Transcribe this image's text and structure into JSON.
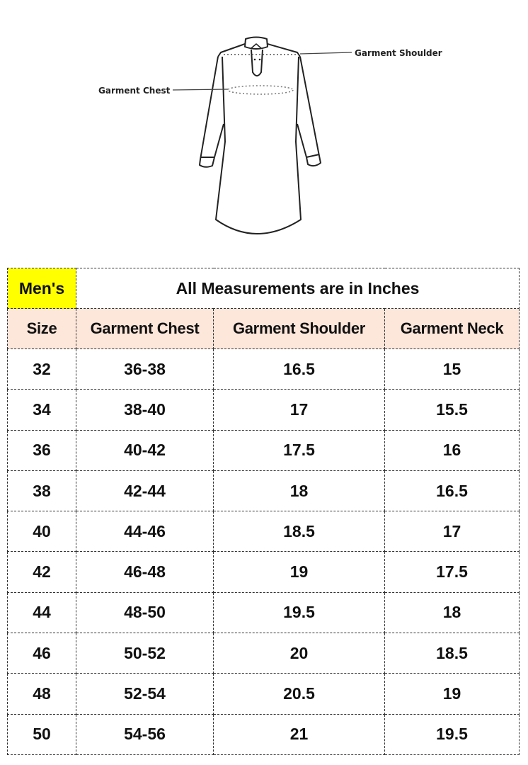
{
  "illustration": {
    "icon": "kurta-outline",
    "labels": {
      "chest": "Garment Chest",
      "shoulder": "Garment Shoulder"
    }
  },
  "table": {
    "badge": "Men's",
    "badge_color": "#ffff00",
    "header_color": "#fde6da",
    "title": "All Measurements are in Inches",
    "columns": [
      "Size",
      "Garment Chest",
      "Garment Shoulder",
      "Garment Neck"
    ],
    "rows": [
      [
        "32",
        "36-38",
        "16.5",
        "15"
      ],
      [
        "34",
        "38-40",
        "17",
        "15.5"
      ],
      [
        "36",
        "40-42",
        "17.5",
        "16"
      ],
      [
        "38",
        "42-44",
        "18",
        "16.5"
      ],
      [
        "40",
        "44-46",
        "18.5",
        "17"
      ],
      [
        "42",
        "46-48",
        "19",
        "17.5"
      ],
      [
        "44",
        "48-50",
        "19.5",
        "18"
      ],
      [
        "46",
        "50-52",
        "20",
        "18.5"
      ],
      [
        "48",
        "52-54",
        "20.5",
        "19"
      ],
      [
        "50",
        "54-56",
        "21",
        "19.5"
      ]
    ]
  }
}
